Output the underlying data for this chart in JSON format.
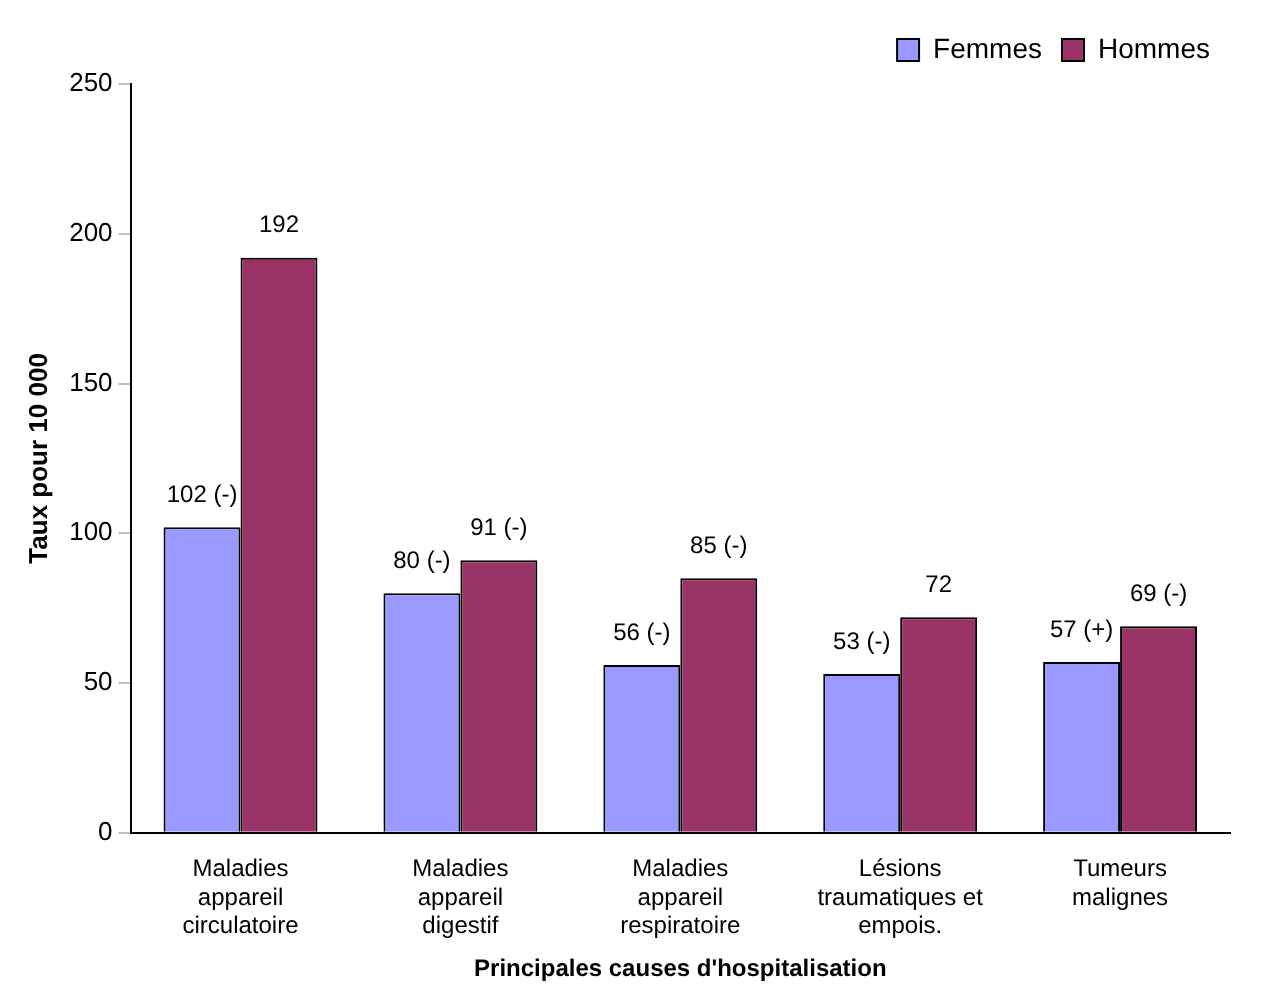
{
  "chart_data": {
    "type": "bar",
    "xlabel": "Principales causes d'hospitalisation",
    "ylabel": "Taux pour 10 000",
    "categories": [
      "Maladies appareil circulatoire",
      "Maladies appareil digestif",
      "Maladies appareil respiratoire",
      "Lésions traumatiques et empois.",
      "Tumeurs malignes"
    ],
    "series": [
      {
        "name": "Femmes",
        "color": "#9999ff",
        "values": [
          102,
          80,
          56,
          53,
          57
        ],
        "value_labels": [
          "102 (-)",
          "80 (-)",
          "56 (-)",
          "53 (-)",
          "57 (+)"
        ]
      },
      {
        "name": "Hommes",
        "color": "#993366",
        "values": [
          192,
          91,
          85,
          72,
          69
        ],
        "value_labels": [
          "192",
          "91 (-)",
          "85 (-)",
          "72",
          "69 (-)"
        ]
      }
    ],
    "ylim": [
      0,
      250
    ],
    "yticks": [
      0,
      50,
      100,
      150,
      200,
      250
    ],
    "grid": false,
    "legend": "top right"
  }
}
